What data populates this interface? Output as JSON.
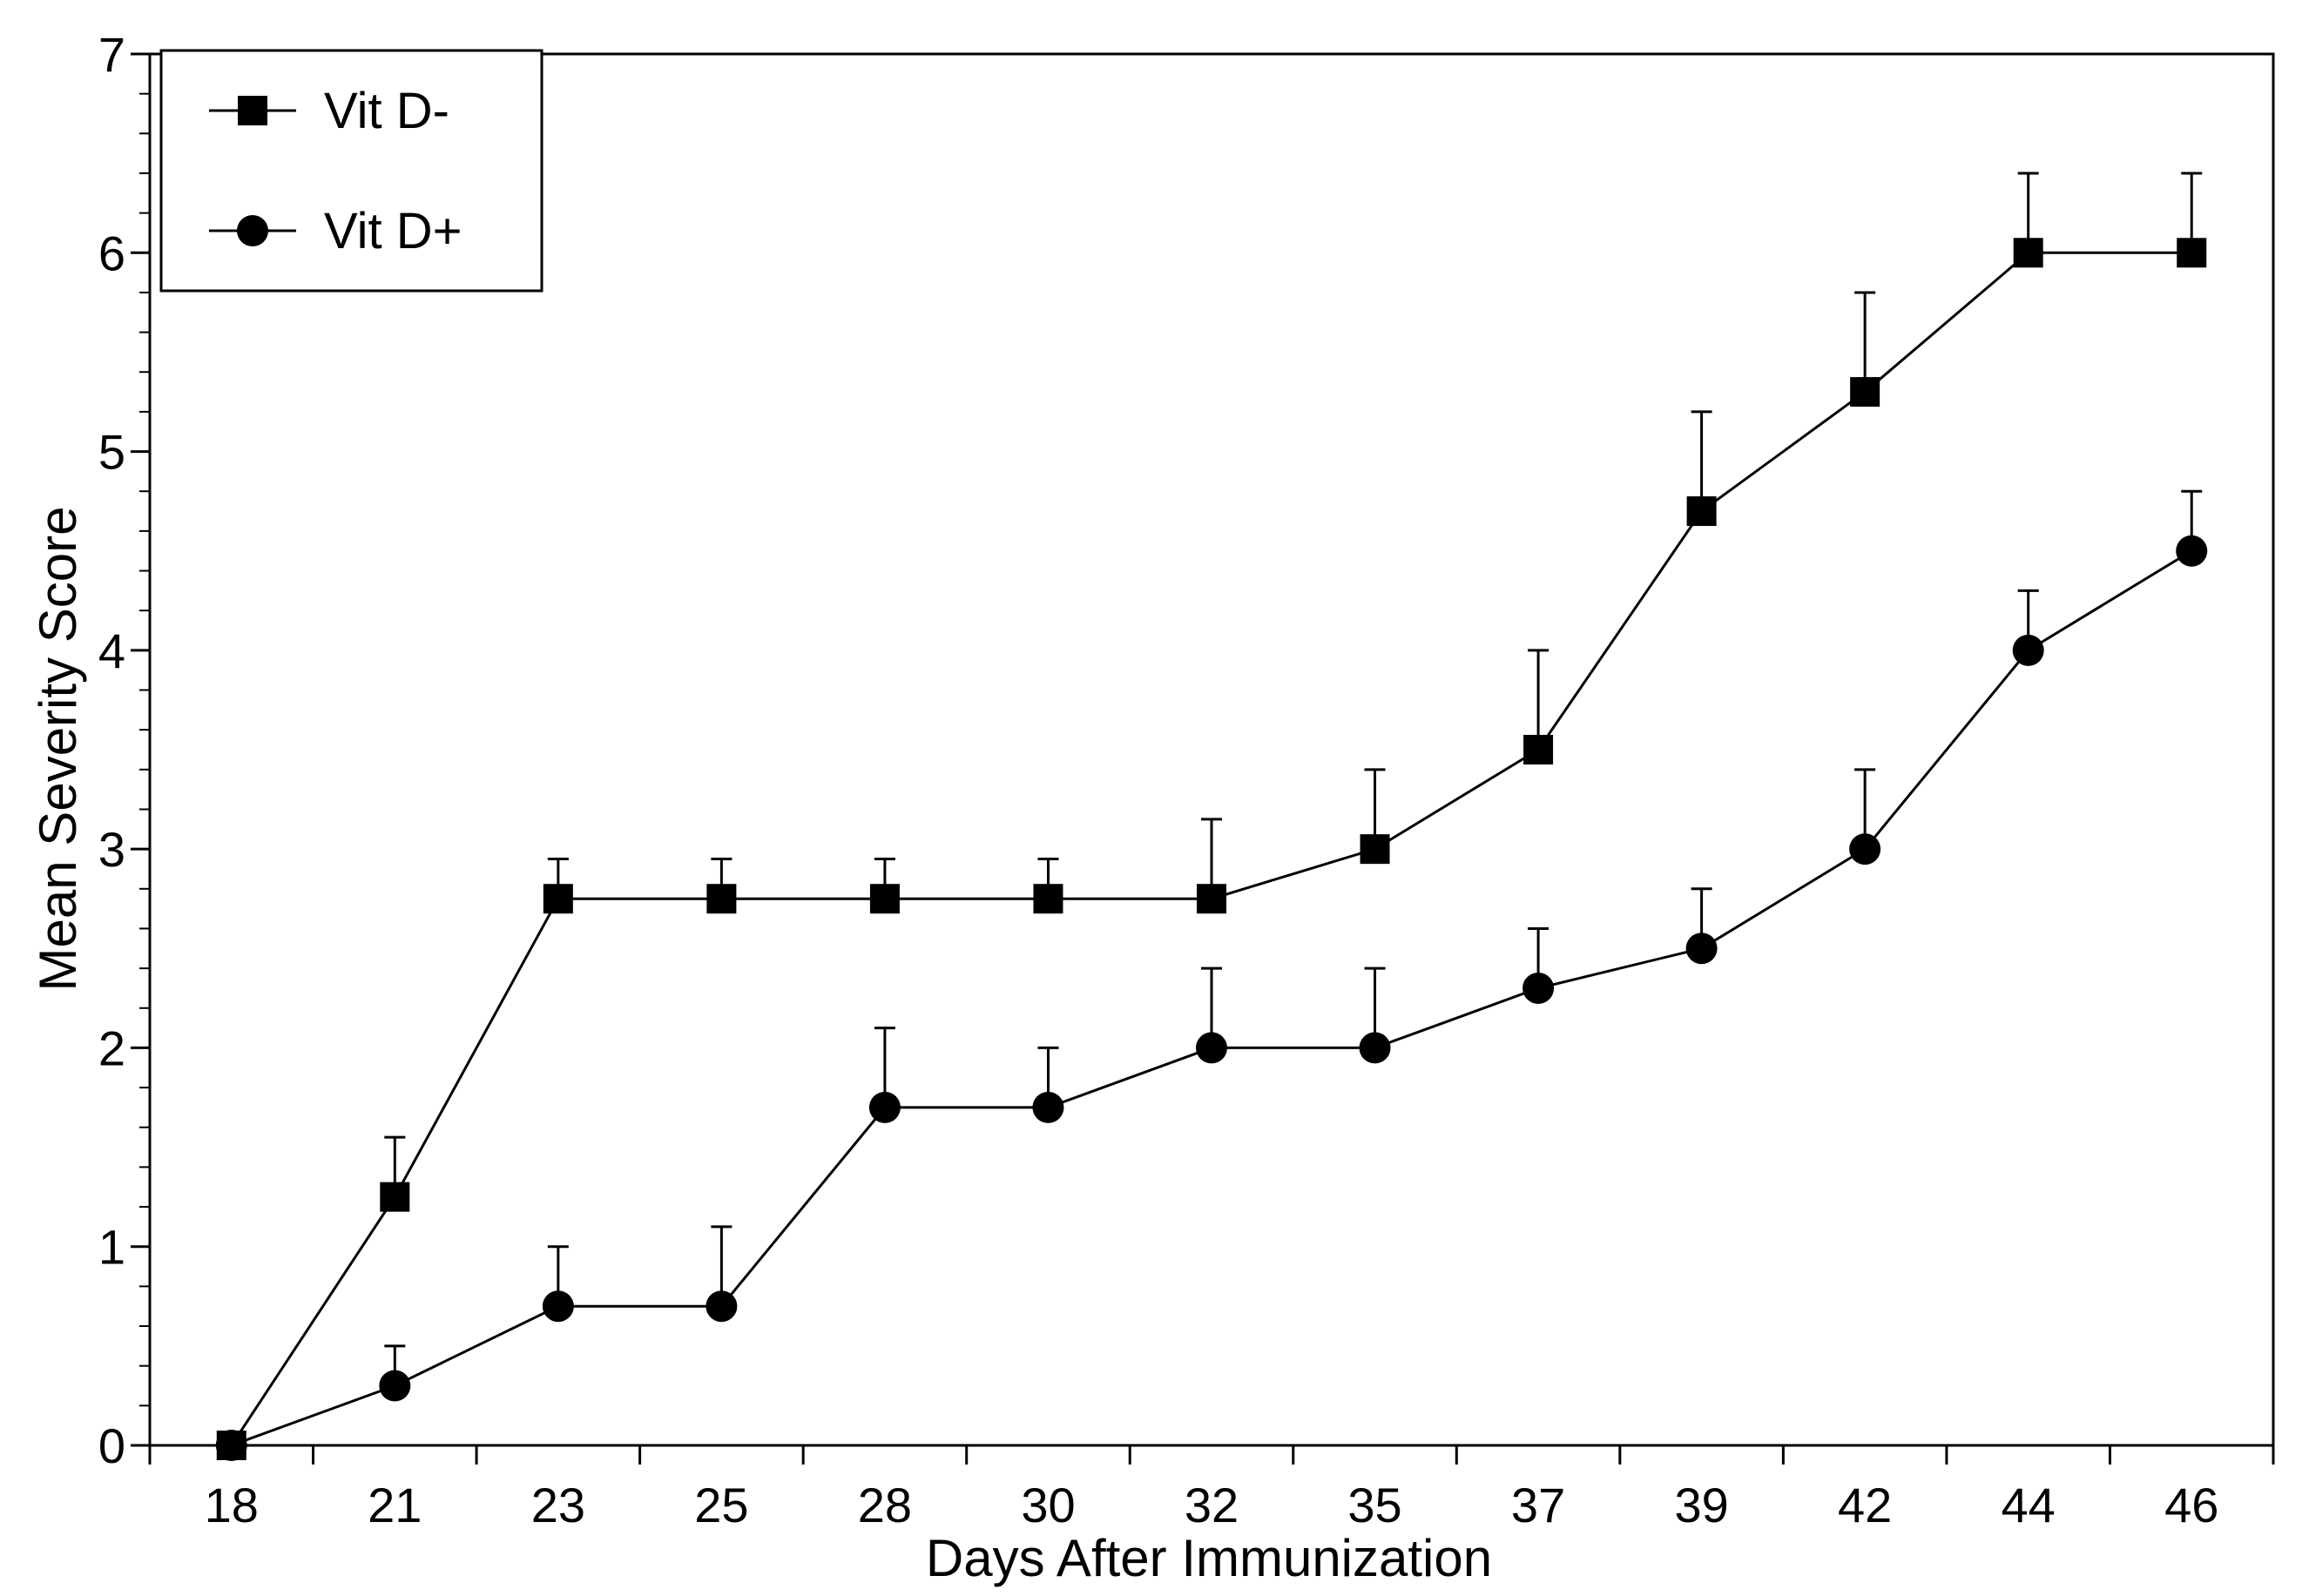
{
  "chart_data": {
    "type": "line",
    "title": "",
    "xlabel": "Days After Immunization",
    "ylabel": "Mean Severity Score",
    "categories": [
      "18",
      "21",
      "23",
      "25",
      "28",
      "30",
      "32",
      "35",
      "37",
      "39",
      "42",
      "44",
      "46"
    ],
    "ylim": [
      0,
      7
    ],
    "yticks": [
      "0",
      "1",
      "2",
      "3",
      "4",
      "5",
      "6",
      "7"
    ],
    "grid": false,
    "legend_position": "top-left",
    "series": [
      {
        "name": "Vit D-",
        "marker": "square",
        "values": [
          0,
          1.25,
          2.75,
          2.75,
          2.75,
          2.75,
          2.75,
          3.0,
          3.5,
          4.7,
          5.3,
          6.0,
          6.0
        ],
        "error_upper": [
          0,
          0.3,
          0.2,
          0.2,
          0.2,
          0.2,
          0.4,
          0.4,
          0.5,
          0.5,
          0.5,
          0.4,
          0.4
        ]
      },
      {
        "name": "Vit D+",
        "marker": "circle",
        "values": [
          0,
          0.3,
          0.7,
          0.7,
          1.7,
          1.7,
          2.0,
          2.0,
          2.3,
          2.5,
          3.0,
          4.0,
          4.5
        ],
        "error_upper": [
          0,
          0.2,
          0.3,
          0.4,
          0.4,
          0.3,
          0.4,
          0.4,
          0.3,
          0.3,
          0.4,
          0.3,
          0.3
        ]
      }
    ]
  },
  "colors": {
    "line": "#000000",
    "background": "#ffffff"
  }
}
